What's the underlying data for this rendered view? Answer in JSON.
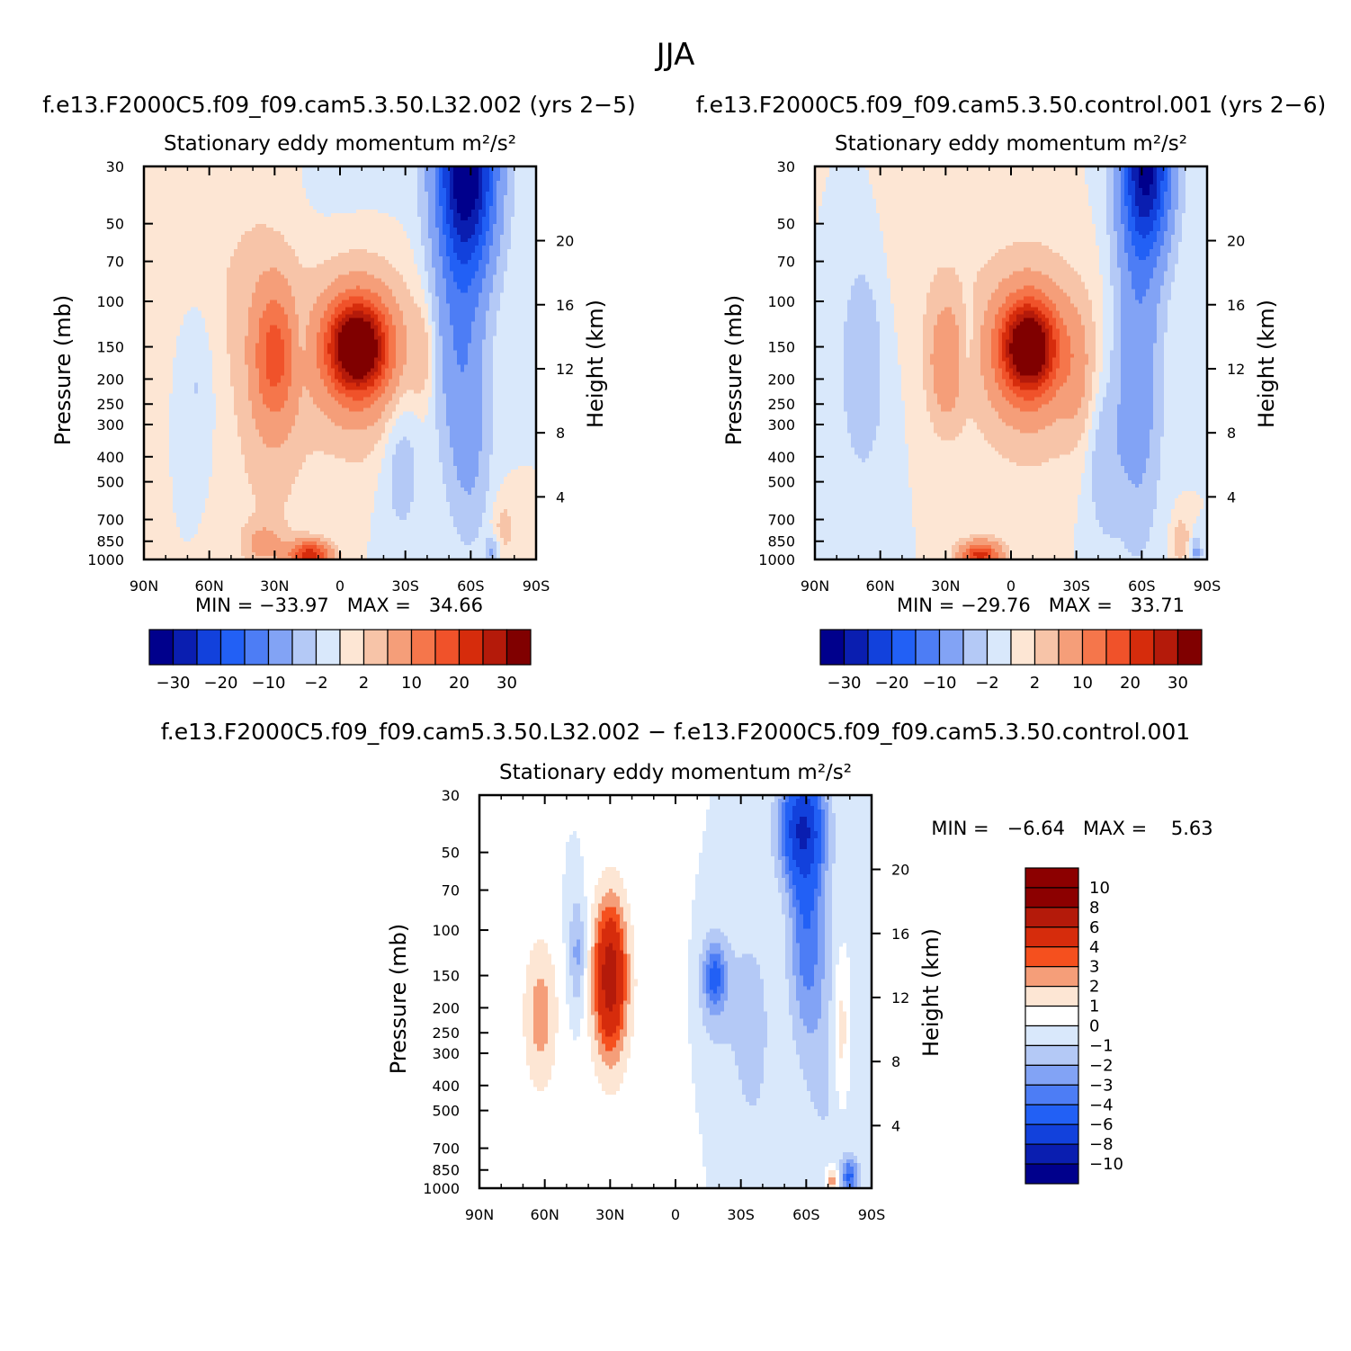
{
  "figure": {
    "title": "JJA",
    "diff_title": "f.e13.F2000C5.f09_f09.cam5.3.50.L32.002 − f.e13.F2000C5.f09_f09.cam5.3.50.control.001"
  },
  "chart_data": [
    {
      "type": "heatmap",
      "case_title": "f.e13.F2000C5.f09_f09.cam5.3.50.L32.002 (yrs 2−5)",
      "title": "Stationary eddy momentum  m²/s²",
      "xlabel": "",
      "ylabel": "Pressure (mb)",
      "ylabel_right": "Height (km)",
      "x_ticks": [
        "90N",
        "60N",
        "30N",
        "0",
        "30S",
        "60S",
        "90S"
      ],
      "y_ticks": [
        "30",
        "50",
        "70",
        "100",
        "150",
        "200",
        "250",
        "300",
        "400",
        "500",
        "700",
        "850",
        "1000"
      ],
      "y_right_ticks": [
        "20",
        "16",
        "12",
        "8",
        "4"
      ],
      "minmax_label": "MIN = −33.97   MAX =   34.66",
      "min": -33.97,
      "max": 34.66,
      "colorbar": {
        "orientation": "horizontal",
        "labels": [
          "−30",
          "−20",
          "−10",
          "−2",
          "2",
          "10",
          "20",
          "30"
        ]
      },
      "features": [
        {
          "lat": -60,
          "p": 30,
          "value": -33.97
        },
        {
          "lat": -8,
          "p": 150,
          "value": 34.66
        },
        {
          "lat": 30,
          "p": 150,
          "value": 12
        },
        {
          "lat": 14,
          "p": 1000,
          "value": 22
        },
        {
          "lat": 52,
          "p": 200,
          "value": -4
        }
      ]
    },
    {
      "type": "heatmap",
      "case_title": "f.e13.F2000C5.f09_f09.cam5.3.50.control.001 (yrs 2−6)",
      "title": "Stationary eddy momentum  m²/s²",
      "xlabel": "",
      "ylabel": "Pressure (mb)",
      "ylabel_right": "Height (km)",
      "x_ticks": [
        "90N",
        "60N",
        "30N",
        "0",
        "30S",
        "60S",
        "90S"
      ],
      "y_ticks": [
        "30",
        "50",
        "70",
        "100",
        "150",
        "200",
        "250",
        "300",
        "400",
        "500",
        "700",
        "850",
        "1000"
      ],
      "y_right_ticks": [
        "20",
        "16",
        "12",
        "8",
        "4"
      ],
      "minmax_label": "MIN = −29.76   MAX =   33.71",
      "min": -29.76,
      "max": 33.71,
      "colorbar": {
        "orientation": "horizontal",
        "labels": [
          "−30",
          "−20",
          "−10",
          "−2",
          "2",
          "10",
          "20",
          "30"
        ]
      },
      "features": [
        {
          "lat": -60,
          "p": 30,
          "value": -29.76
        },
        {
          "lat": -8,
          "p": 150,
          "value": 33.71
        },
        {
          "lat": 30,
          "p": 150,
          "value": 8
        },
        {
          "lat": 14,
          "p": 1000,
          "value": 20
        },
        {
          "lat": 68,
          "p": 200,
          "value": -4
        }
      ]
    },
    {
      "type": "heatmap",
      "case_title": "difference",
      "title": "Stationary eddy momentum  m²/s²",
      "xlabel": "",
      "ylabel": "Pressure (mb)",
      "ylabel_right": "Height (km)",
      "x_ticks": [
        "90N",
        "60N",
        "30N",
        "0",
        "30S",
        "60S",
        "90S"
      ],
      "y_ticks": [
        "30",
        "50",
        "70",
        "100",
        "150",
        "200",
        "250",
        "300",
        "400",
        "500",
        "700",
        "850",
        "1000"
      ],
      "y_right_ticks": [
        "20",
        "16",
        "12",
        "8",
        "4"
      ],
      "minmax_label": "MIN =   −6.64   MAX =    5.63",
      "min": -6.64,
      "max": 5.63,
      "colorbar": {
        "orientation": "vertical",
        "labels": [
          "10",
          "8",
          "6",
          "4",
          "3",
          "2",
          "1",
          "0",
          "−1",
          "−2",
          "−3",
          "−4",
          "−6",
          "−8",
          "−10"
        ]
      },
      "features": [
        {
          "lat": 30,
          "p": 150,
          "value": 5.63
        },
        {
          "lat": 62,
          "p": 200,
          "value": 2
        },
        {
          "lat": -60,
          "p": 50,
          "value": -6.64
        },
        {
          "lat": -17,
          "p": 150,
          "value": -3
        },
        {
          "lat": -76,
          "p": 300,
          "value": 2
        }
      ]
    }
  ],
  "palettes": {
    "main": [
      "#00008c",
      "#0a1eb0",
      "#1241dc",
      "#2260f5",
      "#4d7df5",
      "#82a3f5",
      "#b4c9f6",
      "#d9e8fb",
      "#fde6d4",
      "#f7c4a8",
      "#f59e79",
      "#f5764b",
      "#f0522a",
      "#d62c0c",
      "#b41a0a",
      "#800000"
    ],
    "diff": [
      "#8c0000",
      "#b41a0a",
      "#d62c0c",
      "#f5501e",
      "#f59e79",
      "#fde6d4",
      "#ffffff",
      "#d9e8fb",
      "#b4c9f6",
      "#82a3f5",
      "#4d7df5",
      "#2260f5",
      "#1241dc",
      "#0a1eb0",
      "#00008c"
    ]
  }
}
